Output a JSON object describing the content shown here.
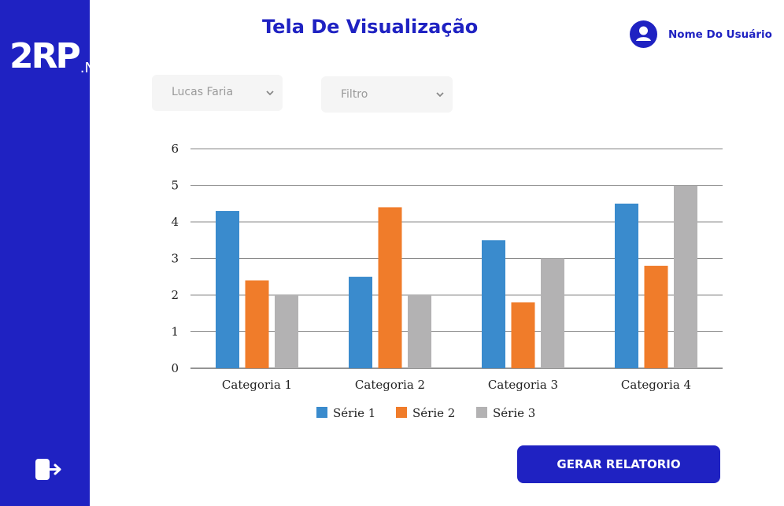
{
  "brand": {
    "logo_main": "2RP",
    "logo_suffix": ".NET"
  },
  "header": {
    "title": "Tela De Visualização",
    "user_name": "Nome Do Usuário"
  },
  "filters": {
    "user_select": {
      "value": "Lucas Faria"
    },
    "filter_select": {
      "value": "Filtro"
    }
  },
  "actions": {
    "generate_report": "GERAR RELATORIO"
  },
  "icons": {
    "logout": "logout-icon",
    "user": "user-avatar-icon",
    "chevron": "chevron-down-icon"
  },
  "colors": {
    "brand": "#1f22c2",
    "serie1": "#3a8bcd",
    "serie2": "#f07c2a",
    "serie3": "#b3b2b3"
  },
  "chart_data": {
    "type": "bar",
    "categories": [
      "Categoria 1",
      "Categoria 2",
      "Categoria 3",
      "Categoria 4"
    ],
    "series": [
      {
        "name": "Série 1",
        "values": [
          4.3,
          2.5,
          3.5,
          4.5
        ]
      },
      {
        "name": "Série 2",
        "values": [
          2.4,
          4.4,
          1.8,
          2.8
        ]
      },
      {
        "name": "Série 3",
        "values": [
          2.0,
          2.0,
          3.0,
          5.0
        ]
      }
    ],
    "yticks": [
      "0",
      "1",
      "2",
      "3",
      "4",
      "5",
      "6"
    ],
    "ylim": [
      0,
      6
    ],
    "grid": true,
    "legend": "bottom"
  }
}
